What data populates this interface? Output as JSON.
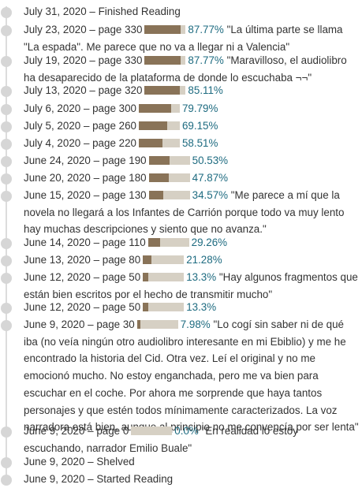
{
  "colors": {
    "progress_fill": "#897358",
    "progress_track": "#d6d0c4",
    "percent_text": "#1e6b80",
    "timeline_dot": "#d6d6d6",
    "body_text": "#333333"
  },
  "timeline": {
    "entries": [
      {
        "date": "July 31, 2020",
        "label": "Finished Reading"
      },
      {
        "date": "July 23, 2020",
        "page": "page 330",
        "progress": 87.77,
        "percent": "87.77%",
        "comment": "\"La última parte se llama \"La espada\". Me parece que no va a llegar ni a Valencia\""
      },
      {
        "date": "July 19, 2020",
        "page": "page 330",
        "progress": 87.77,
        "percent": "87.77%",
        "comment": "\"Maravilloso, el audiolibro ha desaparecido de la plataforma de donde lo escuchaba ¬¬\""
      },
      {
        "date": "July 13, 2020",
        "page": "page 320",
        "progress": 85.11,
        "percent": "85.11%"
      },
      {
        "date": "July 6, 2020",
        "page": "page 300",
        "progress": 79.79,
        "percent": "79.79%"
      },
      {
        "date": "July 5, 2020",
        "page": "page 260",
        "progress": 69.15,
        "percent": "69.15%"
      },
      {
        "date": "July 4, 2020",
        "page": "page 220",
        "progress": 58.51,
        "percent": "58.51%"
      },
      {
        "date": "June 24, 2020",
        "page": "page 190",
        "progress": 50.53,
        "percent": "50.53%"
      },
      {
        "date": "June 20, 2020",
        "page": "page 180",
        "progress": 47.87,
        "percent": "47.87%"
      },
      {
        "date": "June 15, 2020",
        "page": "page 130",
        "progress": 34.57,
        "percent": "34.57%",
        "comment": "\"Me parece a mí que la novela no llegará a los Infantes de Carrión porque todo va muy lento hay muchas descripciones y siento que no avanza.\""
      },
      {
        "date": "June 14, 2020",
        "page": "page 110",
        "progress": 29.26,
        "percent": "29.26%"
      },
      {
        "date": "June 13, 2020",
        "page": "page 80",
        "progress": 21.28,
        "percent": "21.28%"
      },
      {
        "date": "June 12, 2020",
        "page": "page 50",
        "progress": 13.3,
        "percent": "13.3%",
        "comment": "\"Hay algunos fragmentos que están bien escritos por el hecho de transmitir mucho\""
      },
      {
        "date": "June 12, 2020",
        "page": "page 50",
        "progress": 13.3,
        "percent": "13.3%"
      },
      {
        "date": "June 9, 2020",
        "page": "page 30",
        "progress": 7.98,
        "percent": "7.98%",
        "comment": "\"Lo cogí sin saber ni de qué iba (no veía ningún otro audiolibro interesante en mi Ebiblio) y me he encontrado la historia del Cid. Otra vez. Leí el original y no me emocionó mucho. No estoy enganchada, pero me va bien para escuchar en el coche. Por ahora me sorprende que haya tantos personajes y que estén todos mínimamente caracterizados. La voz narradora está bien, aunque al principio no me convencía por ser lenta\""
      },
      {
        "date": "June 9, 2020",
        "page": "page 0",
        "progress": 0,
        "percent": "0.0%",
        "comment": "\"En realidad lo estoy escuchando, narrador Emilio Buale\""
      },
      {
        "date": "June 9, 2020",
        "label": "Shelved"
      },
      {
        "date": "June 9, 2020",
        "label": "Started Reading"
      }
    ]
  }
}
